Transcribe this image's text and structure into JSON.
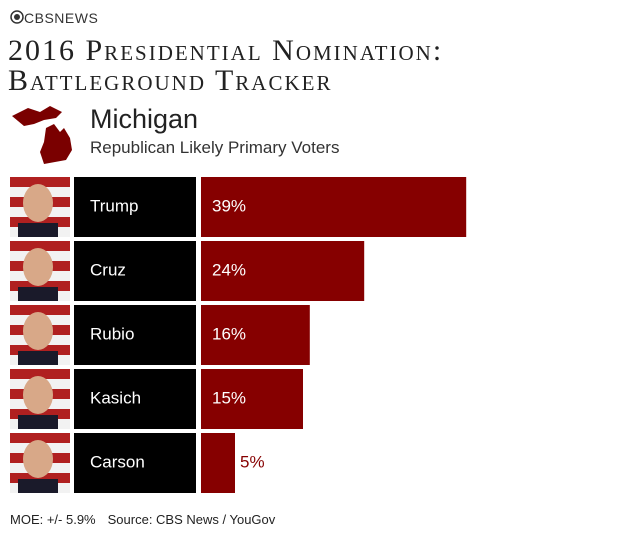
{
  "header": {
    "brand": "CBSNEWS"
  },
  "chart_data": {
    "type": "bar",
    "title": "2016 Presidential Nomination: Battleground Tracker",
    "state": "Michigan",
    "subtitle": "Republican Likely Primary Voters",
    "categories": [
      "Trump",
      "Cruz",
      "Rubio",
      "Kasich",
      "Carson"
    ],
    "values": [
      39,
      24,
      16,
      15,
      5
    ],
    "value_labels": [
      "39%",
      "24%",
      "16%",
      "15%",
      "5%"
    ],
    "color": "#860000",
    "xlim": [
      0,
      40
    ]
  },
  "footer": {
    "notes": [
      "MOE: +/- 5.9%",
      "Source: CBS News / YouGov"
    ]
  }
}
